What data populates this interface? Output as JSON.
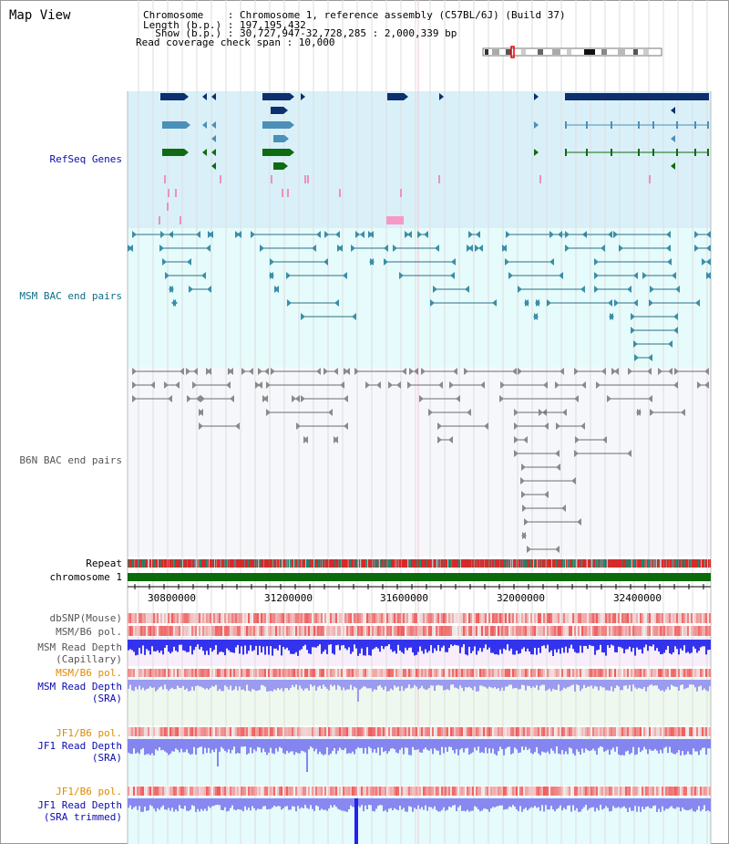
{
  "header": {
    "title": "Map View",
    "chromosome_line": "Chromosome    : Chromosome 1, reference assembly (C57BL/6J) (Build 37)",
    "length_line": "Length (b.p.) : 197,195,432",
    "show_line": "  Show (b.p.) : 30,727,947-32,728,285 : 2,000,339 bp",
    "coverage_line": "Read coverage check span : 10,000"
  },
  "tracks": {
    "refseq": "RefSeq Genes",
    "msm_bac": "MSM BAC end pairs",
    "b6n_bac": "B6N BAC end pairs",
    "repeat": "Repeat",
    "chromosome": "chromosome 1",
    "dbsnp": "dbSNP(Mouse)",
    "msm_pol1": "MSM/B6 pol.",
    "msm_cap_1": "MSM Read Depth",
    "msm_cap_2": "(Capillary)",
    "msm_pol2": "MSM/B6 pol.",
    "msm_sra_1": "MSM Read Depth",
    "msm_sra_2": "(SRA)",
    "jf1_pol1": "JF1/B6 pol.",
    "jf1_sra_1": "JF1 Read Depth",
    "jf1_sra_2": "(SRA)",
    "jf1_pol2": "JF1/B6 pol.",
    "jf1_trim_1": "JF1 Read Depth",
    "jf1_trim_2": "(SRA trimmed)"
  },
  "axis": {
    "ticks": [
      "30800000",
      "31200000",
      "31600000",
      "32000000",
      "32400000"
    ]
  },
  "colors": {
    "refseq_bg": "#d9f0f9",
    "msm_bg": "#e6fbfb",
    "b6n_bg": "#f6f7fb",
    "gene_navy": "#0d2f6e",
    "gene_steel": "#4a90b8",
    "gene_green": "#0f6b12",
    "bac_teal": "#2b6f86",
    "bac_grey": "#6b6b6b",
    "chromosome_bar": "#0a6b0a",
    "depth_blue": "#2222ee",
    "depth_light": "#8c8cf2"
  }
}
